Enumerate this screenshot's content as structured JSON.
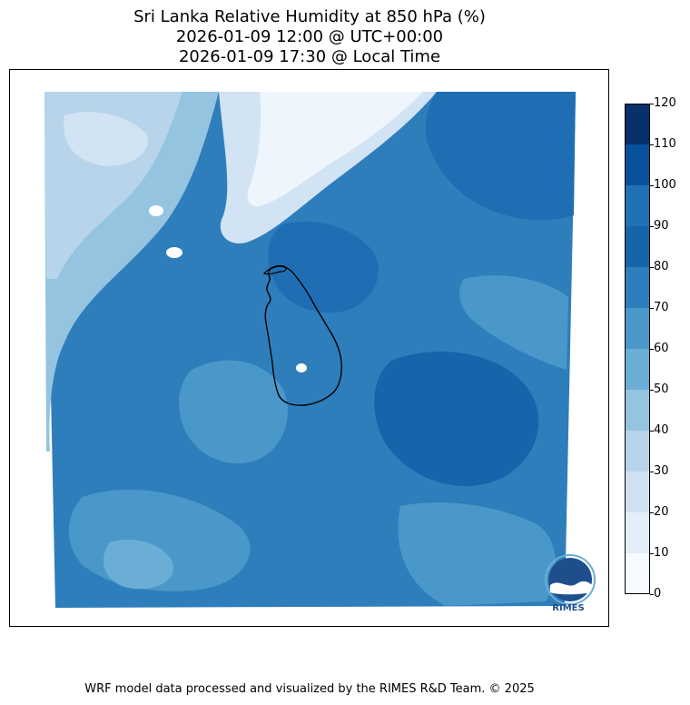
{
  "title": {
    "line1": "Sri Lanka Relative Humidity at 850 hPa (%)",
    "line2": "2026-01-09 12:00 @ UTC+00:00",
    "line3": "2026-01-09 17:30 @ Local Time"
  },
  "colorbar": {
    "ticks": [
      "0",
      "10",
      "20",
      "30",
      "40",
      "50",
      "60",
      "70",
      "80",
      "90",
      "100",
      "110",
      "120"
    ],
    "colors": [
      "#f7fbff",
      "#e3eef9",
      "#d0e1f2",
      "#b7d4ea",
      "#94c4df",
      "#6aaed6",
      "#4a98c9",
      "#2e7ebc",
      "#1764ab",
      "#2171b5",
      "#08519c",
      "#08306b"
    ]
  },
  "map": {
    "field_colors": {
      "very_dry": "#eef5fc",
      "dry": "#d2e3f3",
      "light": "#b7d4ea",
      "mid_light": "#94c4df",
      "mid": "#6aaed6",
      "mid_dark": "#4a98c9",
      "dark": "#2e7ebc",
      "darker": "#1f6eb3",
      "darkest": "#1764ab"
    }
  },
  "logo": {
    "text": "RIMES"
  },
  "footer": "WRF model data processed and visualized by the RIMES R&D Team. © 2025"
}
